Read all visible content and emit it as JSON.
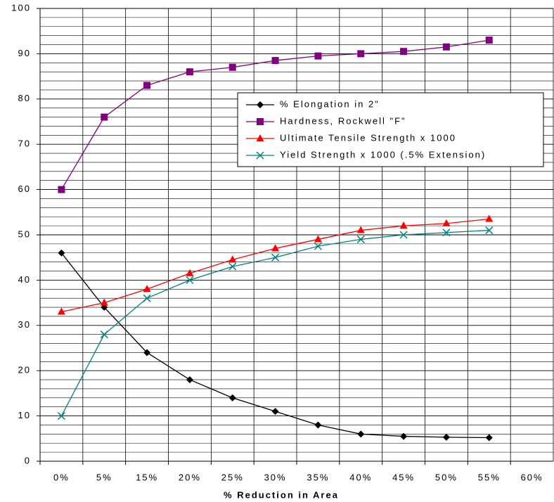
{
  "chart_data": {
    "type": "line",
    "x_label": "% Reduction in Area",
    "categories": [
      "0%",
      "5%",
      "15%",
      "20%",
      "25%",
      "30%",
      "35%",
      "40%",
      "45%",
      "50%",
      "55%",
      "60%"
    ],
    "series": [
      {
        "name": "% Elongation in 2\"",
        "color": "#000000",
        "marker": "diamond",
        "values": [
          46,
          34,
          24,
          18,
          14,
          11,
          8,
          6,
          5.5,
          5.3,
          5.2,
          null
        ]
      },
      {
        "name": "Hardness, Rockwell \"F\"",
        "color": "#800080",
        "marker": "square",
        "values": [
          60,
          76,
          83,
          86,
          87,
          88.5,
          89.5,
          90,
          90.5,
          91.5,
          93,
          null
        ]
      },
      {
        "name": "Ultimate Tensile Strength x 1000",
        "color": "#ff0000",
        "marker": "triangle",
        "values": [
          33,
          35,
          38,
          41.5,
          44.5,
          47,
          49,
          51,
          52,
          52.5,
          53.5,
          null
        ]
      },
      {
        "name": "Yield Strength x 1000 (.5% Extension)",
        "color": "#008080",
        "marker": "x",
        "values": [
          10,
          28,
          36,
          40,
          43,
          45,
          47.5,
          49,
          50,
          50.5,
          51,
          null
        ]
      }
    ],
    "ylim": [
      0,
      100
    ],
    "yticks": [
      0,
      10,
      20,
      30,
      40,
      50,
      60,
      70,
      80,
      90,
      100
    ],
    "grid": true,
    "legend": "upper right"
  }
}
